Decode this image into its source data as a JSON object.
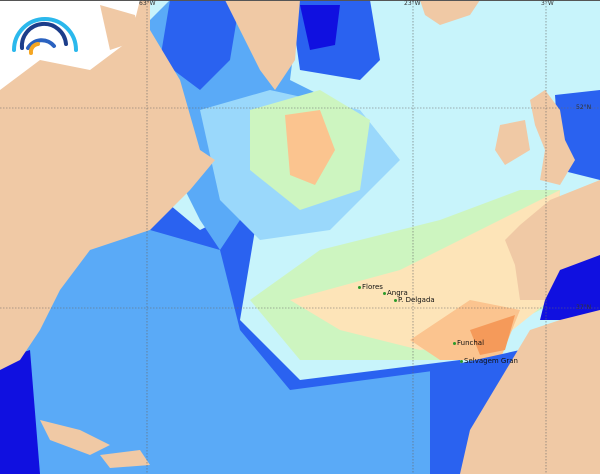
{
  "map": {
    "grid_labels": {
      "lon": [
        "63°W",
        "23°W",
        "3°W"
      ],
      "lat": [
        "52°N",
        "37°N"
      ]
    },
    "places": [
      "Flores",
      "Angra",
      "P. Delgada",
      "Funchal",
      "Selvagem Gran"
    ],
    "colors": {
      "land": "#f0c9a5",
      "deep_blue": "#1010e0",
      "blue": "#2a62f0",
      "mid_blue": "#5aaaf7",
      "light_blue": "#9ad8fb",
      "pale_cyan": "#c8f4fb",
      "green": "#cdf5c0",
      "cream": "#fde4b8",
      "peach": "#fbc48f",
      "orange": "#f59a5a"
    },
    "logo": "wave-arcs-logo"
  }
}
